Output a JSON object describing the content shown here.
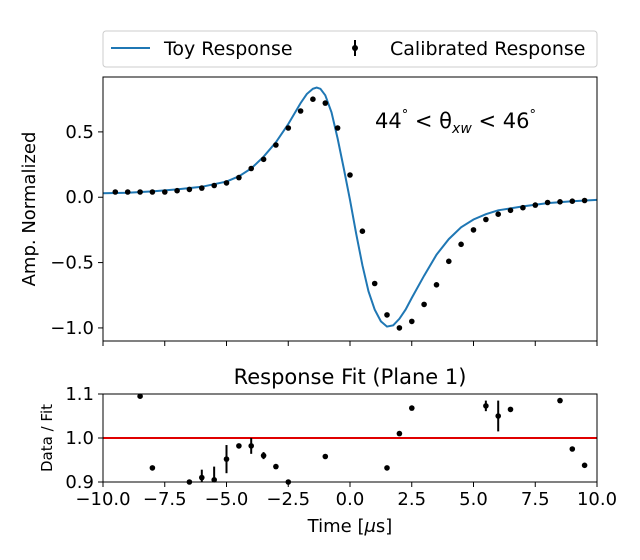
{
  "chart_data": [
    {
      "type": "line",
      "xlabel": "",
      "ylabel": "Amp. Normalized",
      "xlim": [
        -10,
        10
      ],
      "ylim": [
        -1.1,
        0.92
      ],
      "x_ticks": [
        -10,
        -7.5,
        -5,
        -2.5,
        0,
        2.5,
        5,
        7.5,
        10
      ],
      "y_ticks": [
        -1.0,
        -0.5,
        0.0,
        0.5
      ],
      "y_tick_labels": [
        "−1.0",
        "−0.5",
        "0.0",
        "0.5"
      ],
      "annotation": "44° < θxw < 46°",
      "annotation_parts": {
        "left": "44",
        "mid": " < θ",
        "sub": "xw",
        "right": " < 46"
      },
      "legend": {
        "placement": "top, above plot, two columns",
        "entries": [
          {
            "label": "Toy Response",
            "color": "#1f77b4"
          },
          {
            "label": "Calibrated Response",
            "color": "#000000"
          }
        ]
      },
      "series": [
        {
          "name": "Toy Response",
          "style": "line",
          "color": "#1f77b4",
          "x": [
            -10,
            -9,
            -8,
            -7,
            -6,
            -5,
            -4.5,
            -4,
            -3.5,
            -3,
            -2.5,
            -2,
            -1.75,
            -1.5,
            -1.35,
            -1.2,
            -1.0,
            -0.75,
            -0.5,
            -0.25,
            0,
            0.25,
            0.5,
            0.75,
            1.0,
            1.25,
            1.5,
            1.75,
            2.0,
            2.25,
            2.5,
            3,
            3.5,
            4,
            4.5,
            5,
            5.5,
            6,
            7,
            8,
            9,
            10
          ],
          "y": [
            0.03,
            0.035,
            0.045,
            0.06,
            0.08,
            0.12,
            0.16,
            0.22,
            0.31,
            0.42,
            0.56,
            0.72,
            0.79,
            0.83,
            0.84,
            0.83,
            0.78,
            0.65,
            0.45,
            0.22,
            -0.02,
            -0.28,
            -0.52,
            -0.72,
            -0.86,
            -0.95,
            -0.99,
            -0.98,
            -0.93,
            -0.86,
            -0.77,
            -0.6,
            -0.44,
            -0.32,
            -0.23,
            -0.17,
            -0.13,
            -0.1,
            -0.07,
            -0.045,
            -0.03,
            -0.02
          ]
        },
        {
          "name": "Calibrated Response",
          "style": "points",
          "color": "#000000",
          "x": [
            -9.5,
            -9.0,
            -8.5,
            -8.0,
            -7.5,
            -7.0,
            -6.5,
            -6.0,
            -5.5,
            -5.0,
            -4.5,
            -4.0,
            -3.5,
            -3.0,
            -2.5,
            -2.0,
            -1.5,
            -1.0,
            -0.5,
            0.0,
            0.5,
            1.0,
            1.5,
            2.0,
            2.5,
            3.0,
            3.5,
            4.0,
            4.5,
            5.0,
            5.5,
            6.0,
            6.5,
            7.0,
            7.5,
            8.0,
            8.5,
            9.0,
            9.5
          ],
          "y": [
            0.04,
            0.04,
            0.04,
            0.04,
            0.04,
            0.05,
            0.06,
            0.07,
            0.09,
            0.11,
            0.15,
            0.22,
            0.29,
            0.4,
            0.53,
            0.66,
            0.75,
            0.72,
            0.53,
            0.17,
            -0.26,
            -0.66,
            -0.9,
            -1.0,
            -0.95,
            -0.82,
            -0.67,
            -0.49,
            -0.36,
            -0.25,
            -0.17,
            -0.13,
            -0.1,
            -0.08,
            -0.06,
            -0.04,
            -0.035,
            -0.03,
            -0.025
          ]
        }
      ]
    },
    {
      "type": "scatter",
      "title": "Response Fit (Plane 1)",
      "xlabel": "Time [μs]",
      "xlabel_parts": {
        "pre": "Time [",
        "sym": "μ",
        "post": "s]"
      },
      "ylabel": "Data / Fit",
      "xlim": [
        -10,
        10
      ],
      "ylim": [
        0.9,
        1.1
      ],
      "x_ticks": [
        -10,
        -7.5,
        -5,
        -2.5,
        0,
        2.5,
        5,
        7.5,
        10
      ],
      "x_tick_labels": [
        "−10.0",
        "−7.5",
        "−5.0",
        "−2.5",
        "0.0",
        "2.5",
        "5.0",
        "7.5",
        "10.0"
      ],
      "y_ticks": [
        0.9,
        1.0,
        1.1
      ],
      "y_tick_labels": [
        "0.9",
        "1.0",
        "1.1"
      ],
      "reference_line": {
        "y": 1.0,
        "color": "#e00000"
      },
      "series": [
        {
          "name": "",
          "style": "points",
          "color": "#000000",
          "points": [
            {
              "x": -8.5,
              "y": 1.095,
              "err": 0.0
            },
            {
              "x": -8.0,
              "y": 0.932,
              "err": 0.0
            },
            {
              "x": -6.5,
              "y": 0.9,
              "err": 0.005
            },
            {
              "x": -6.0,
              "y": 0.91,
              "err": 0.018
            },
            {
              "x": -5.5,
              "y": 0.905,
              "err": 0.03
            },
            {
              "x": -5.0,
              "y": 0.952,
              "err": 0.032
            },
            {
              "x": -4.5,
              "y": 0.982,
              "err": 0.0
            },
            {
              "x": -4.0,
              "y": 0.982,
              "err": 0.018
            },
            {
              "x": -3.5,
              "y": 0.96,
              "err": 0.008
            },
            {
              "x": -3.0,
              "y": 0.935,
              "err": 0.005
            },
            {
              "x": -2.5,
              "y": 0.9,
              "err": 0.0
            },
            {
              "x": -1.0,
              "y": 0.958,
              "err": 0.0
            },
            {
              "x": 1.5,
              "y": 0.932,
              "err": 0.0
            },
            {
              "x": 2.0,
              "y": 1.01,
              "err": 0.0
            },
            {
              "x": 2.5,
              "y": 1.068,
              "err": 0.0
            },
            {
              "x": 5.5,
              "y": 1.073,
              "err": 0.012
            },
            {
              "x": 6.0,
              "y": 1.05,
              "err": 0.035
            },
            {
              "x": 6.5,
              "y": 1.065,
              "err": 0.0
            },
            {
              "x": 8.5,
              "y": 1.085,
              "err": 0.0
            },
            {
              "x": 9.0,
              "y": 0.975,
              "err": 0.0
            },
            {
              "x": 9.5,
              "y": 0.938,
              "err": 0.0
            }
          ]
        }
      ]
    }
  ]
}
